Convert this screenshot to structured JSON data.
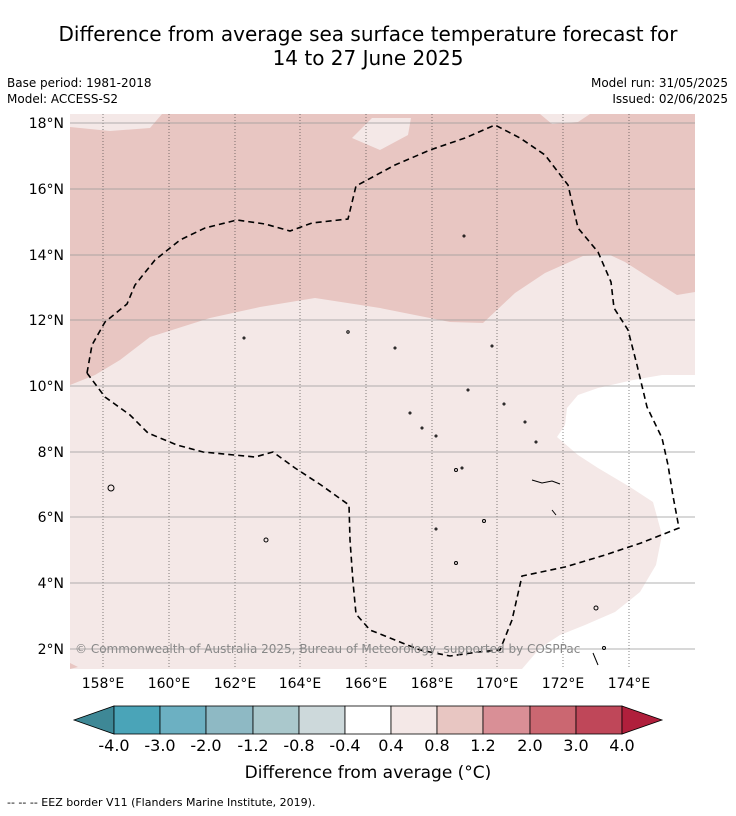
{
  "header": {
    "title_line1": "Difference from average sea surface temperature forecast for",
    "title_line2": "14 to 27 June 2025",
    "base_period": "Base period: 1981-2018",
    "model": "Model: ACCESS-S2",
    "model_run": "Model run: 31/05/2025",
    "issued": "Issued: 02/06/2025"
  },
  "map": {
    "lon_labels": [
      "158°E",
      "160°E",
      "162°E",
      "164°E",
      "166°E",
      "168°E",
      "170°E",
      "172°E",
      "174°E"
    ],
    "lat_labels": [
      "18°N",
      "16°N",
      "14°N",
      "12°N",
      "10°N",
      "8°N",
      "6°N",
      "4°N",
      "2°N"
    ],
    "copyright": "© Commonwealth of Australia 2025, Bureau of Meteorology, supported by COSPPac",
    "colors": {
      "band_0_4_to_0_8": "#f4e8e7",
      "band_0_8_to_1_2": "#e8c6c2",
      "neutral": "#ffffff",
      "eez_line": "#000000"
    }
  },
  "colorbar": {
    "colors": [
      "#3e8896",
      "#4aa4b8",
      "#6cb0c2",
      "#8eb9c4",
      "#aac8cc",
      "#cdd9db",
      "#ffffff",
      "#f4e8e7",
      "#e8c6c2",
      "#d98f96",
      "#cb6771",
      "#bf4759",
      "#b01f3c"
    ],
    "tick_labels": [
      "-4.0",
      "-3.0",
      "-2.0",
      "-1.2",
      "-0.8",
      "-0.4",
      "0.4",
      "0.8",
      "1.2",
      "2.0",
      "3.0",
      "4.0"
    ],
    "title": "Difference from average (°C)"
  },
  "footnote": "--  --  -- EEZ border V11 (Flanders Marine Institute, 2019)."
}
